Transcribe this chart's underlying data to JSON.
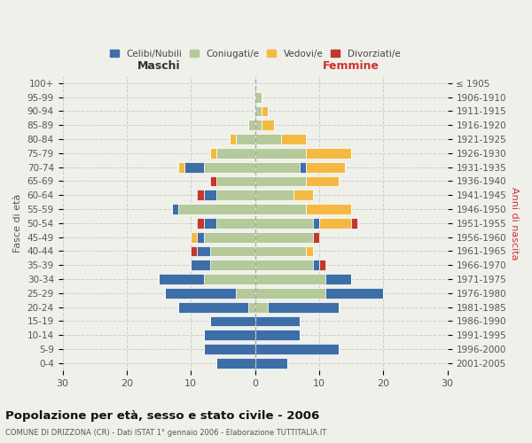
{
  "age_groups": [
    "100+",
    "95-99",
    "90-94",
    "85-89",
    "80-84",
    "75-79",
    "70-74",
    "65-69",
    "60-64",
    "55-59",
    "50-54",
    "45-49",
    "40-44",
    "35-39",
    "30-34",
    "25-29",
    "20-24",
    "15-19",
    "10-14",
    "5-9",
    "0-4"
  ],
  "birth_years": [
    "≤ 1905",
    "1906-1910",
    "1911-1915",
    "1916-1920",
    "1921-1925",
    "1926-1930",
    "1931-1935",
    "1936-1940",
    "1941-1945",
    "1946-1950",
    "1951-1955",
    "1956-1960",
    "1961-1965",
    "1966-1970",
    "1971-1975",
    "1976-1980",
    "1981-1985",
    "1986-1990",
    "1991-1995",
    "1996-2000",
    "2001-2005"
  ],
  "males": {
    "celibe": [
      0,
      0,
      0,
      0,
      0,
      0,
      3,
      0,
      2,
      1,
      2,
      1,
      2,
      3,
      7,
      11,
      11,
      7,
      8,
      8,
      6
    ],
    "coniugato": [
      0,
      0,
      0,
      1,
      3,
      6,
      8,
      6,
      6,
      12,
      6,
      8,
      7,
      7,
      8,
      3,
      1,
      0,
      0,
      0,
      0
    ],
    "vedovo": [
      0,
      0,
      0,
      0,
      1,
      1,
      1,
      0,
      0,
      0,
      0,
      1,
      0,
      0,
      0,
      0,
      0,
      0,
      0,
      0,
      0
    ],
    "divorziato": [
      0,
      0,
      0,
      0,
      0,
      0,
      0,
      1,
      1,
      0,
      1,
      0,
      1,
      0,
      0,
      0,
      0,
      0,
      0,
      0,
      0
    ]
  },
  "females": {
    "nubile": [
      0,
      0,
      0,
      0,
      0,
      0,
      1,
      0,
      0,
      0,
      1,
      0,
      0,
      1,
      4,
      9,
      11,
      7,
      7,
      13,
      5
    ],
    "coniugata": [
      0,
      1,
      1,
      1,
      4,
      8,
      7,
      8,
      6,
      8,
      9,
      9,
      8,
      9,
      11,
      11,
      2,
      0,
      0,
      0,
      0
    ],
    "vedova": [
      0,
      0,
      1,
      2,
      4,
      7,
      6,
      5,
      3,
      7,
      5,
      0,
      1,
      0,
      0,
      0,
      0,
      0,
      0,
      0,
      0
    ],
    "divorziata": [
      0,
      0,
      0,
      0,
      0,
      0,
      0,
      0,
      0,
      0,
      1,
      1,
      0,
      1,
      0,
      0,
      0,
      0,
      0,
      0,
      0
    ]
  },
  "colors": {
    "celibe": "#3d6ea8",
    "coniugato": "#b5c99a",
    "vedovo": "#f4b942",
    "divorziato": "#c0392b"
  },
  "xlim": 30,
  "title": "Popolazione per età, sesso e stato civile - 2006",
  "subtitle": "COMUNE DI DRIZZONA (CR) - Dati ISTAT 1° gennaio 2006 - Elaborazione TUTTITALIA.IT",
  "ylabel_left": "Fasce di età",
  "ylabel_right": "Anni di nascita",
  "xlabel_left": "Maschi",
  "xlabel_right": "Femmine",
  "legend_labels": [
    "Celibi/Nubili",
    "Coniugati/e",
    "Vedovi/e",
    "Divorziati/e"
  ],
  "background_color": "#f0f0eb"
}
